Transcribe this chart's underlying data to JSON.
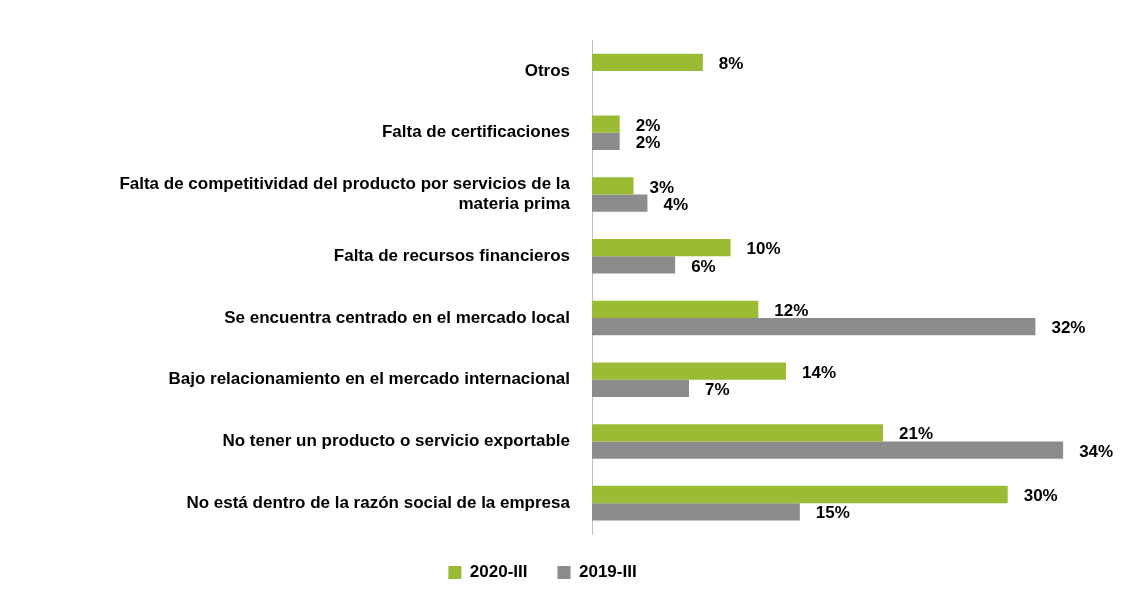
{
  "chart_data": {
    "type": "bar",
    "orientation": "horizontal",
    "categories": [
      "Otros",
      "Falta de certificaciones",
      "Falta de competitividad del producto por servicios de la materia prima",
      "Falta de recursos financieros",
      "Se encuentra centrado en el mercado local",
      "Bajo relacionamiento en el mercado internacional",
      "No tener un producto o servicio exportable",
      "No está dentro de la razón social de la empresa"
    ],
    "series": [
      {
        "name": "2020-III",
        "color": "#9bbb35",
        "values": [
          8,
          2,
          3,
          10,
          12,
          14,
          21,
          30
        ],
        "value_labels": [
          "8%",
          "2%",
          "3%",
          "10%",
          "12%",
          "14%",
          "21%",
          "30%"
        ]
      },
      {
        "name": "2019-III",
        "color": "#8c8c8c",
        "values": [
          null,
          2,
          4,
          6,
          32,
          7,
          34,
          15
        ],
        "value_labels": [
          null,
          "2%",
          "4%",
          "6%",
          "32%",
          "7%",
          "34%",
          "15%"
        ]
      }
    ],
    "legend": "bottom",
    "tick_labels": "y"
  }
}
